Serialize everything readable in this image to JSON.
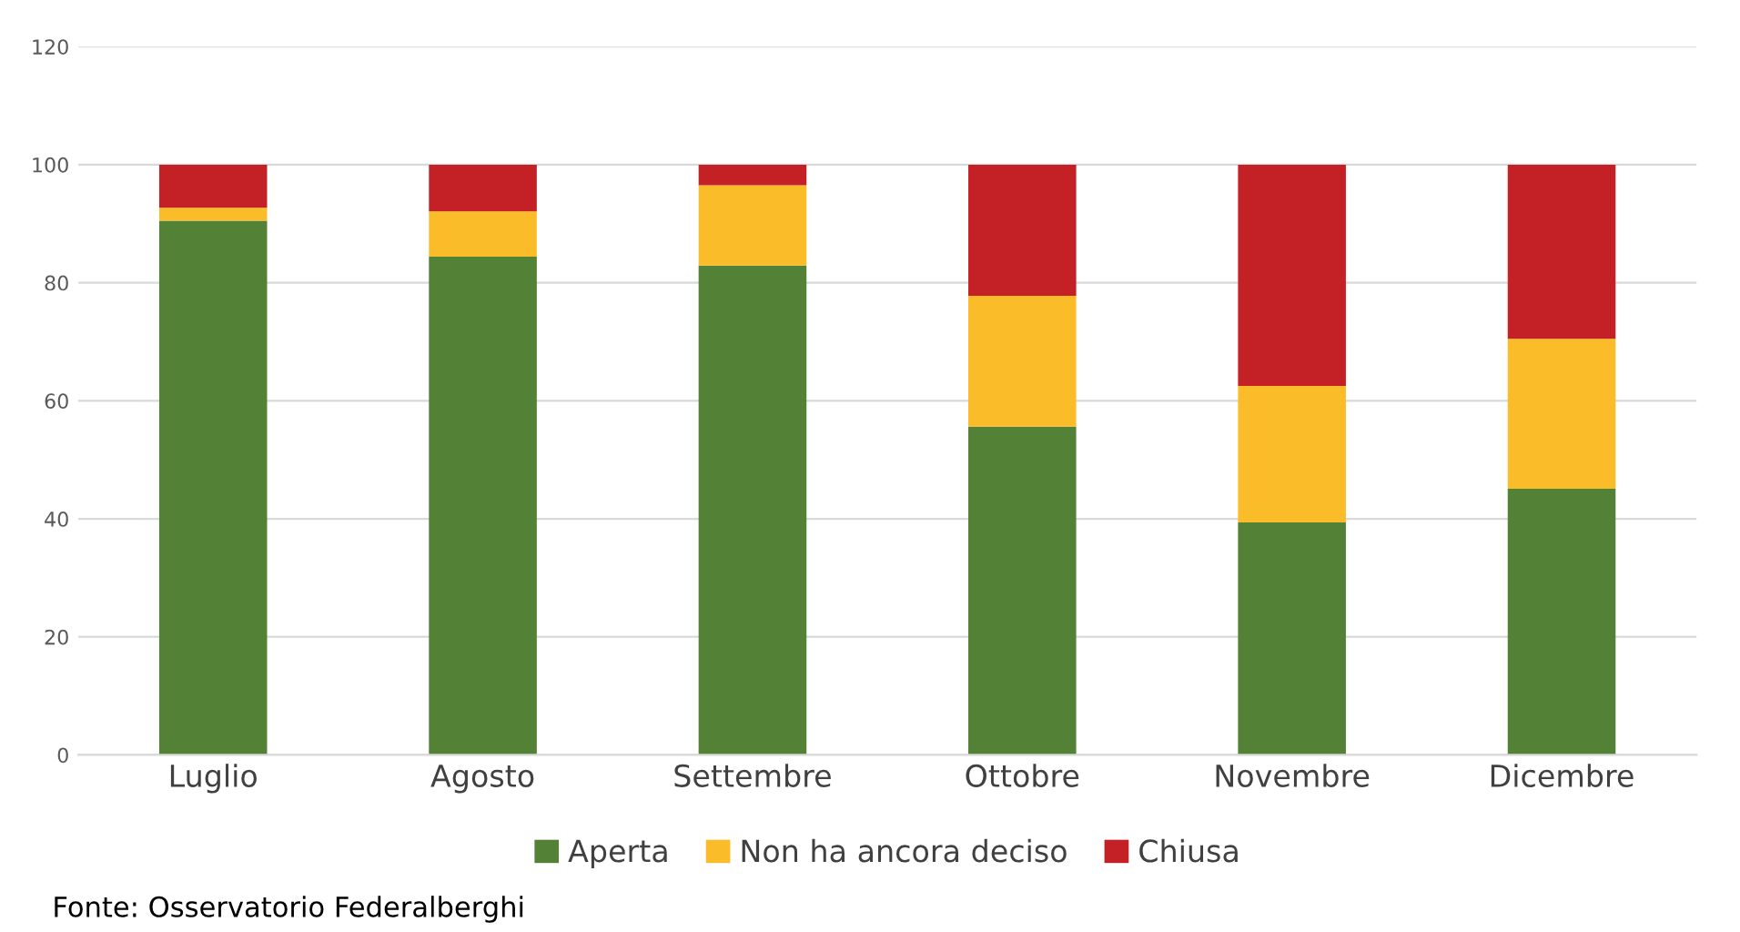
{
  "chart_data": {
    "type": "bar",
    "stacked": true,
    "categories": [
      "Luglio",
      "Agosto",
      "Settembre",
      "Ottobre",
      "Novembre",
      "Dicembre"
    ],
    "series": [
      {
        "name": "Aperta",
        "color": "#538135",
        "values": [
          90.5,
          84.4,
          82.9,
          55.6,
          39.4,
          45.1
        ]
      },
      {
        "name": "Non ha ancora deciso",
        "color": "#fbbc2a",
        "values": [
          2.2,
          7.7,
          13.6,
          22.2,
          23.1,
          25.4
        ]
      },
      {
        "name": "Chiusa",
        "color": "#c42127",
        "values": [
          7.3,
          7.9,
          3.5,
          22.2,
          37.5,
          29.5
        ]
      }
    ],
    "ylim": [
      0,
      120
    ],
    "yticks": [
      0,
      20,
      40,
      60,
      80,
      100,
      120
    ],
    "grid": "y",
    "legend": "bottom",
    "annotations": [
      "Fonte: Osservatorio Federalberghi"
    ]
  }
}
